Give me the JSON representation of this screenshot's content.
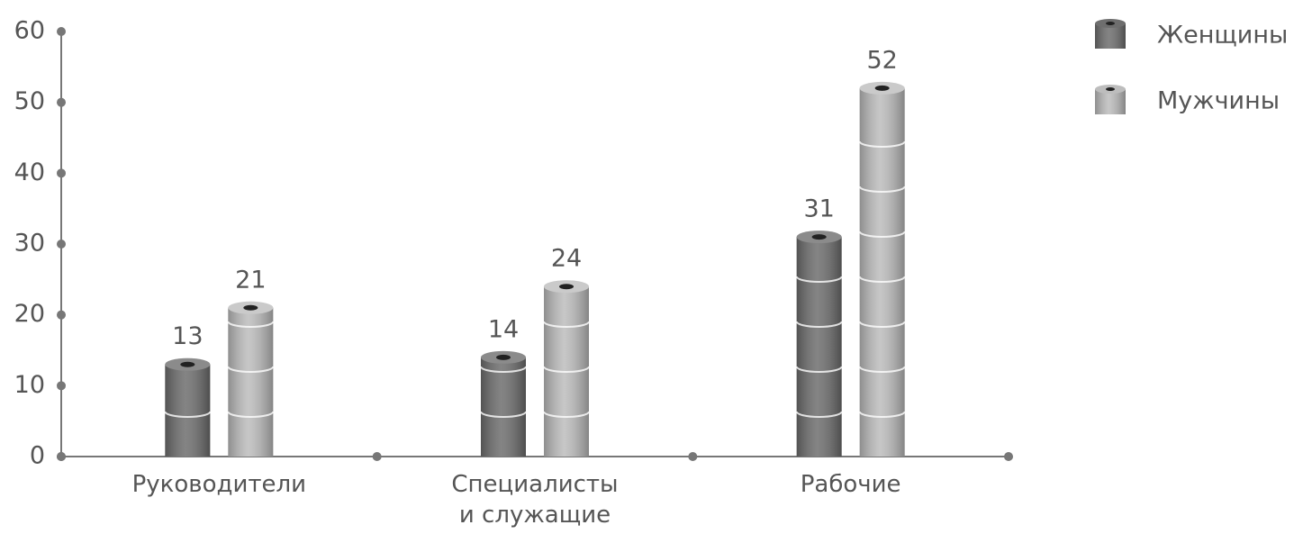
{
  "chart_data": {
    "type": "bar",
    "categories": [
      "Руководители",
      "Специалисты и служащие",
      "Рабочие"
    ],
    "series": [
      {
        "name": "Женщины",
        "color": "#6e6e6e",
        "values": [
          13,
          14,
          31
        ]
      },
      {
        "name": "Мужчины",
        "color": "#bdbdbd",
        "values": [
          21,
          24,
          52
        ]
      }
    ],
    "ylim": [
      0,
      60
    ],
    "yticks": [
      0,
      10,
      20,
      30,
      40,
      50,
      60
    ],
    "legend": "top-right"
  }
}
